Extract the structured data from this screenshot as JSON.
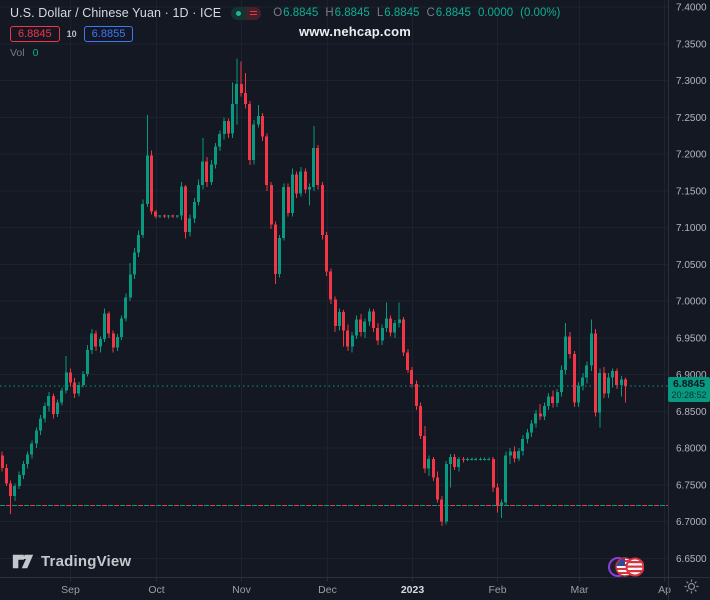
{
  "header": {
    "symbol_title": "U.S. Dollar / Chinese Yuan · 1D · ICE",
    "ohlc": {
      "o_label": "O",
      "o": "6.8845",
      "h_label": "H",
      "h": "6.8845",
      "l_label": "L",
      "l": "6.8845",
      "c_label": "C",
      "c": "6.8845",
      "change": "0.0000",
      "change_pct": "(0.00%)"
    },
    "bid": "6.8845",
    "spread": "10",
    "ask": "6.8855",
    "vol_label": "Vol",
    "vol_value": "0"
  },
  "watermark": "www.nehcap.com",
  "last_price": {
    "value": "6.8845",
    "countdown": "20:28:52",
    "price": 6.8845
  },
  "logo": {
    "text": "TradingView"
  },
  "colors": {
    "background": "#141823",
    "up": "#089981",
    "down": "#f23645",
    "grid": "#1d2231",
    "axis_border": "#2b2f3b",
    "axis_text": "#b2b5be",
    "month_text": "#9b9ea6",
    "year_text": "#d9dbe0",
    "bid_red": "#f23645",
    "ask_blue": "#3b79f8",
    "teal_text": "#0fae93",
    "tag_bg": "#089981"
  },
  "icons": {
    "toggle_dot": "live-dot-icon",
    "toggle_list": "red-list-icon",
    "flags": "usd-cny-flag-icons",
    "gear": "axis-settings-gear-icon",
    "logo_glyph": "tradingview-logo-icon"
  },
  "chart_data": {
    "type": "candlestick",
    "title": "U.S. Dollar / Chinese Yuan",
    "timeframe": "1D",
    "exchange": "ICE",
    "y_range": [
      6.65,
      7.4
    ],
    "grid": true,
    "price_scale": [
      {
        "label": "7.4000",
        "price": 7.4
      },
      {
        "label": "7.3500",
        "price": 7.35
      },
      {
        "label": "7.3000",
        "price": 7.3
      },
      {
        "label": "7.2500",
        "price": 7.25
      },
      {
        "label": "7.2000",
        "price": 7.2
      },
      {
        "label": "7.1500",
        "price": 7.15
      },
      {
        "label": "7.1000",
        "price": 7.1
      },
      {
        "label": "7.0500",
        "price": 7.05
      },
      {
        "label": "7.0000",
        "price": 7.0
      },
      {
        "label": "6.9500",
        "price": 6.95
      },
      {
        "label": "6.9000",
        "price": 6.9
      },
      {
        "label": "6.8500",
        "price": 6.85
      },
      {
        "label": "6.8000",
        "price": 6.8
      },
      {
        "label": "6.7500",
        "price": 6.75
      },
      {
        "label": "6.7000",
        "price": 6.7
      },
      {
        "label": "6.6500",
        "price": 6.65
      }
    ],
    "time_scale": [
      {
        "label": "Sep",
        "index": 16,
        "bright": false
      },
      {
        "label": "Oct",
        "index": 36,
        "bright": false
      },
      {
        "label": "Nov",
        "index": 56,
        "bright": false
      },
      {
        "label": "Dec",
        "index": 76,
        "bright": false
      },
      {
        "label": "2023",
        "index": 96,
        "bright": true
      },
      {
        "label": "Feb",
        "index": 116,
        "bright": false
      },
      {
        "label": "Mar",
        "index": 135,
        "bright": false
      },
      {
        "label": "Ap",
        "index": 155,
        "bright": false
      }
    ],
    "current_price_line": 6.8845,
    "dashed_level_line": 6.722,
    "candles": [
      [
        6.79,
        6.795,
        6.768,
        6.773
      ],
      [
        6.773,
        6.778,
        6.748,
        6.752
      ],
      [
        6.752,
        6.756,
        6.71,
        6.735
      ],
      [
        6.735,
        6.752,
        6.728,
        6.748
      ],
      [
        6.748,
        6.768,
        6.744,
        6.763
      ],
      [
        6.763,
        6.782,
        6.758,
        6.778
      ],
      [
        6.778,
        6.795,
        6.772,
        6.791
      ],
      [
        6.791,
        6.81,
        6.786,
        6.806
      ],
      [
        6.806,
        6.828,
        6.8,
        6.824
      ],
      [
        6.824,
        6.845,
        6.818,
        6.84
      ],
      [
        6.84,
        6.862,
        6.835,
        6.857
      ],
      [
        6.857,
        6.876,
        6.85,
        6.871
      ],
      [
        6.871,
        6.874,
        6.84,
        6.846
      ],
      [
        6.846,
        6.866,
        6.842,
        6.862
      ],
      [
        6.862,
        6.882,
        6.858,
        6.878
      ],
      [
        6.878,
        6.925,
        6.874,
        6.903
      ],
      [
        6.903,
        6.908,
        6.884,
        6.889
      ],
      [
        6.889,
        6.895,
        6.868,
        6.874
      ],
      [
        6.874,
        6.89,
        6.87,
        6.886
      ],
      [
        6.886,
        6.905,
        6.882,
        6.901
      ],
      [
        6.901,
        6.94,
        6.897,
        6.933
      ],
      [
        6.933,
        6.962,
        6.928,
        6.956
      ],
      [
        6.956,
        6.96,
        6.932,
        6.938
      ],
      [
        6.938,
        6.952,
        6.93,
        6.948
      ],
      [
        6.948,
        6.99,
        6.944,
        6.983
      ],
      [
        6.983,
        6.986,
        6.95,
        6.956
      ],
      [
        6.956,
        6.96,
        6.93,
        6.937
      ],
      [
        6.937,
        6.955,
        6.932,
        6.951
      ],
      [
        6.951,
        6.98,
        6.947,
        6.976
      ],
      [
        6.976,
        7.01,
        6.972,
        7.005
      ],
      [
        7.005,
        7.052,
        7.0,
        7.036
      ],
      [
        7.036,
        7.072,
        7.03,
        7.066
      ],
      [
        7.066,
        7.096,
        7.06,
        7.09
      ],
      [
        7.09,
        7.138,
        7.086,
        7.132
      ],
      [
        7.132,
        7.253,
        7.128,
        7.198
      ],
      [
        7.198,
        7.205,
        7.118,
        7.122
      ],
      [
        7.122,
        7.124,
        7.112,
        7.115
      ],
      [
        7.115,
        7.117,
        7.113,
        7.116
      ],
      [
        7.116,
        7.118,
        7.113,
        7.115
      ],
      [
        7.115,
        7.117,
        7.112,
        7.116
      ],
      [
        7.116,
        7.118,
        7.113,
        7.115
      ],
      [
        7.115,
        7.117,
        7.113,
        7.116
      ],
      [
        7.116,
        7.162,
        7.11,
        7.156
      ],
      [
        7.156,
        7.158,
        7.085,
        7.094
      ],
      [
        7.094,
        7.118,
        7.088,
        7.112
      ],
      [
        7.112,
        7.14,
        7.106,
        7.135
      ],
      [
        7.135,
        7.165,
        7.13,
        7.158
      ],
      [
        7.158,
        7.222,
        7.152,
        7.19
      ],
      [
        7.19,
        7.196,
        7.155,
        7.162
      ],
      [
        7.162,
        7.192,
        7.158,
        7.186
      ],
      [
        7.186,
        7.215,
        7.18,
        7.21
      ],
      [
        7.21,
        7.232,
        7.204,
        7.227
      ],
      [
        7.227,
        7.25,
        7.22,
        7.245
      ],
      [
        7.245,
        7.248,
        7.222,
        7.228
      ],
      [
        7.228,
        7.297,
        7.222,
        7.268
      ],
      [
        7.268,
        7.33,
        7.24,
        7.295
      ],
      [
        7.295,
        7.326,
        7.278,
        7.283
      ],
      [
        7.283,
        7.31,
        7.262,
        7.268
      ],
      [
        7.268,
        7.272,
        7.185,
        7.192
      ],
      [
        7.192,
        7.246,
        7.186,
        7.24
      ],
      [
        7.24,
        7.267,
        7.236,
        7.252
      ],
      [
        7.252,
        7.256,
        7.218,
        7.224
      ],
      [
        7.224,
        7.228,
        7.15,
        7.158
      ],
      [
        7.158,
        7.162,
        7.098,
        7.104
      ],
      [
        7.104,
        7.108,
        7.023,
        7.037
      ],
      [
        7.037,
        7.09,
        7.032,
        7.086
      ],
      [
        7.086,
        7.16,
        7.082,
        7.155
      ],
      [
        7.155,
        7.16,
        7.115,
        7.12
      ],
      [
        7.12,
        7.18,
        7.115,
        7.172
      ],
      [
        7.172,
        7.176,
        7.14,
        7.146
      ],
      [
        7.146,
        7.182,
        7.142,
        7.176
      ],
      [
        7.176,
        7.18,
        7.146,
        7.152
      ],
      [
        7.152,
        7.16,
        7.13,
        7.155
      ],
      [
        7.155,
        7.238,
        7.15,
        7.208
      ],
      [
        7.208,
        7.212,
        7.152,
        7.158
      ],
      [
        7.158,
        7.162,
        7.084,
        7.09
      ],
      [
        7.09,
        7.094,
        7.034,
        7.04
      ],
      [
        7.04,
        7.044,
        6.996,
        7.002
      ],
      [
        7.002,
        7.006,
        6.958,
        6.966
      ],
      [
        6.966,
        6.99,
        6.96,
        6.985
      ],
      [
        6.985,
        6.988,
        6.938,
        6.96
      ],
      [
        6.96,
        6.968,
        6.932,
        6.938
      ],
      [
        6.938,
        6.958,
        6.93,
        6.953
      ],
      [
        6.953,
        6.98,
        6.948,
        6.975
      ],
      [
        6.975,
        6.982,
        6.952,
        6.958
      ],
      [
        6.958,
        6.976,
        6.95,
        6.972
      ],
      [
        6.972,
        6.99,
        6.966,
        6.986
      ],
      [
        6.986,
        6.989,
        6.958,
        6.963
      ],
      [
        6.963,
        6.97,
        6.94,
        6.946
      ],
      [
        6.946,
        6.968,
        6.94,
        6.963
      ],
      [
        6.963,
        6.998,
        6.958,
        6.976
      ],
      [
        6.976,
        6.98,
        6.952,
        6.957
      ],
      [
        6.957,
        6.974,
        6.95,
        6.97
      ],
      [
        6.97,
        6.998,
        6.964,
        6.975
      ],
      [
        6.975,
        6.978,
        6.925,
        6.93
      ],
      [
        6.93,
        6.935,
        6.902,
        6.906
      ],
      [
        6.906,
        6.91,
        6.882,
        6.887
      ],
      [
        6.887,
        6.892,
        6.852,
        6.857
      ],
      [
        6.857,
        6.862,
        6.812,
        6.816
      ],
      [
        6.816,
        6.83,
        6.766,
        6.772
      ],
      [
        6.772,
        6.79,
        6.762,
        6.785
      ],
      [
        6.785,
        6.788,
        6.755,
        6.76
      ],
      [
        6.76,
        6.768,
        6.726,
        6.73
      ],
      [
        6.73,
        6.735,
        6.694,
        6.7
      ],
      [
        6.7,
        6.782,
        6.696,
        6.778
      ],
      [
        6.778,
        6.792,
        6.746,
        6.788
      ],
      [
        6.788,
        6.792,
        6.77,
        6.774
      ],
      [
        6.774,
        6.788,
        6.768,
        6.785
      ],
      [
        6.785,
        6.788,
        6.78,
        6.784
      ],
      [
        6.784,
        6.787,
        6.782,
        6.785
      ],
      [
        6.785,
        6.787,
        6.783,
        6.785
      ],
      [
        6.785,
        6.787,
        6.783,
        6.785
      ],
      [
        6.785,
        6.787,
        6.783,
        6.785
      ],
      [
        6.785,
        6.787,
        6.783,
        6.785
      ],
      [
        6.785,
        6.787,
        6.783,
        6.785
      ],
      [
        6.785,
        6.788,
        6.74,
        6.746
      ],
      [
        6.746,
        6.752,
        6.712,
        6.722
      ],
      [
        6.722,
        6.73,
        6.705,
        6.726
      ],
      [
        6.726,
        6.795,
        6.722,
        6.79
      ],
      [
        6.79,
        6.8,
        6.778,
        6.795
      ],
      [
        6.795,
        6.802,
        6.78,
        6.786
      ],
      [
        6.786,
        6.8,
        6.782,
        6.796
      ],
      [
        6.796,
        6.818,
        6.79,
        6.812
      ],
      [
        6.812,
        6.826,
        6.806,
        6.821
      ],
      [
        6.821,
        6.838,
        6.815,
        6.833
      ],
      [
        6.833,
        6.852,
        6.828,
        6.847
      ],
      [
        6.847,
        6.86,
        6.838,
        6.843
      ],
      [
        6.843,
        6.862,
        6.838,
        6.857
      ],
      [
        6.857,
        6.875,
        6.852,
        6.87
      ],
      [
        6.87,
        6.878,
        6.855,
        6.861
      ],
      [
        6.861,
        6.88,
        6.856,
        6.876
      ],
      [
        6.876,
        6.912,
        6.87,
        6.906
      ],
      [
        6.906,
        6.97,
        6.9,
        6.952
      ],
      [
        6.952,
        6.958,
        6.922,
        6.928
      ],
      [
        6.928,
        6.932,
        6.856,
        6.862
      ],
      [
        6.862,
        6.89,
        6.856,
        6.885
      ],
      [
        6.885,
        6.902,
        6.878,
        6.896
      ],
      [
        6.896,
        6.918,
        6.888,
        6.912
      ],
      [
        6.912,
        6.975,
        6.905,
        6.956
      ],
      [
        6.956,
        6.962,
        6.843,
        6.848
      ],
      [
        6.848,
        6.908,
        6.828,
        6.902
      ],
      [
        6.902,
        6.91,
        6.868,
        6.874
      ],
      [
        6.874,
        6.902,
        6.868,
        6.896
      ],
      [
        6.896,
        6.908,
        6.882,
        6.905
      ],
      [
        6.905,
        6.908,
        6.88,
        6.886
      ],
      [
        6.886,
        6.898,
        6.87,
        6.893
      ],
      [
        6.893,
        6.896,
        6.862,
        6.8845
      ]
    ]
  }
}
